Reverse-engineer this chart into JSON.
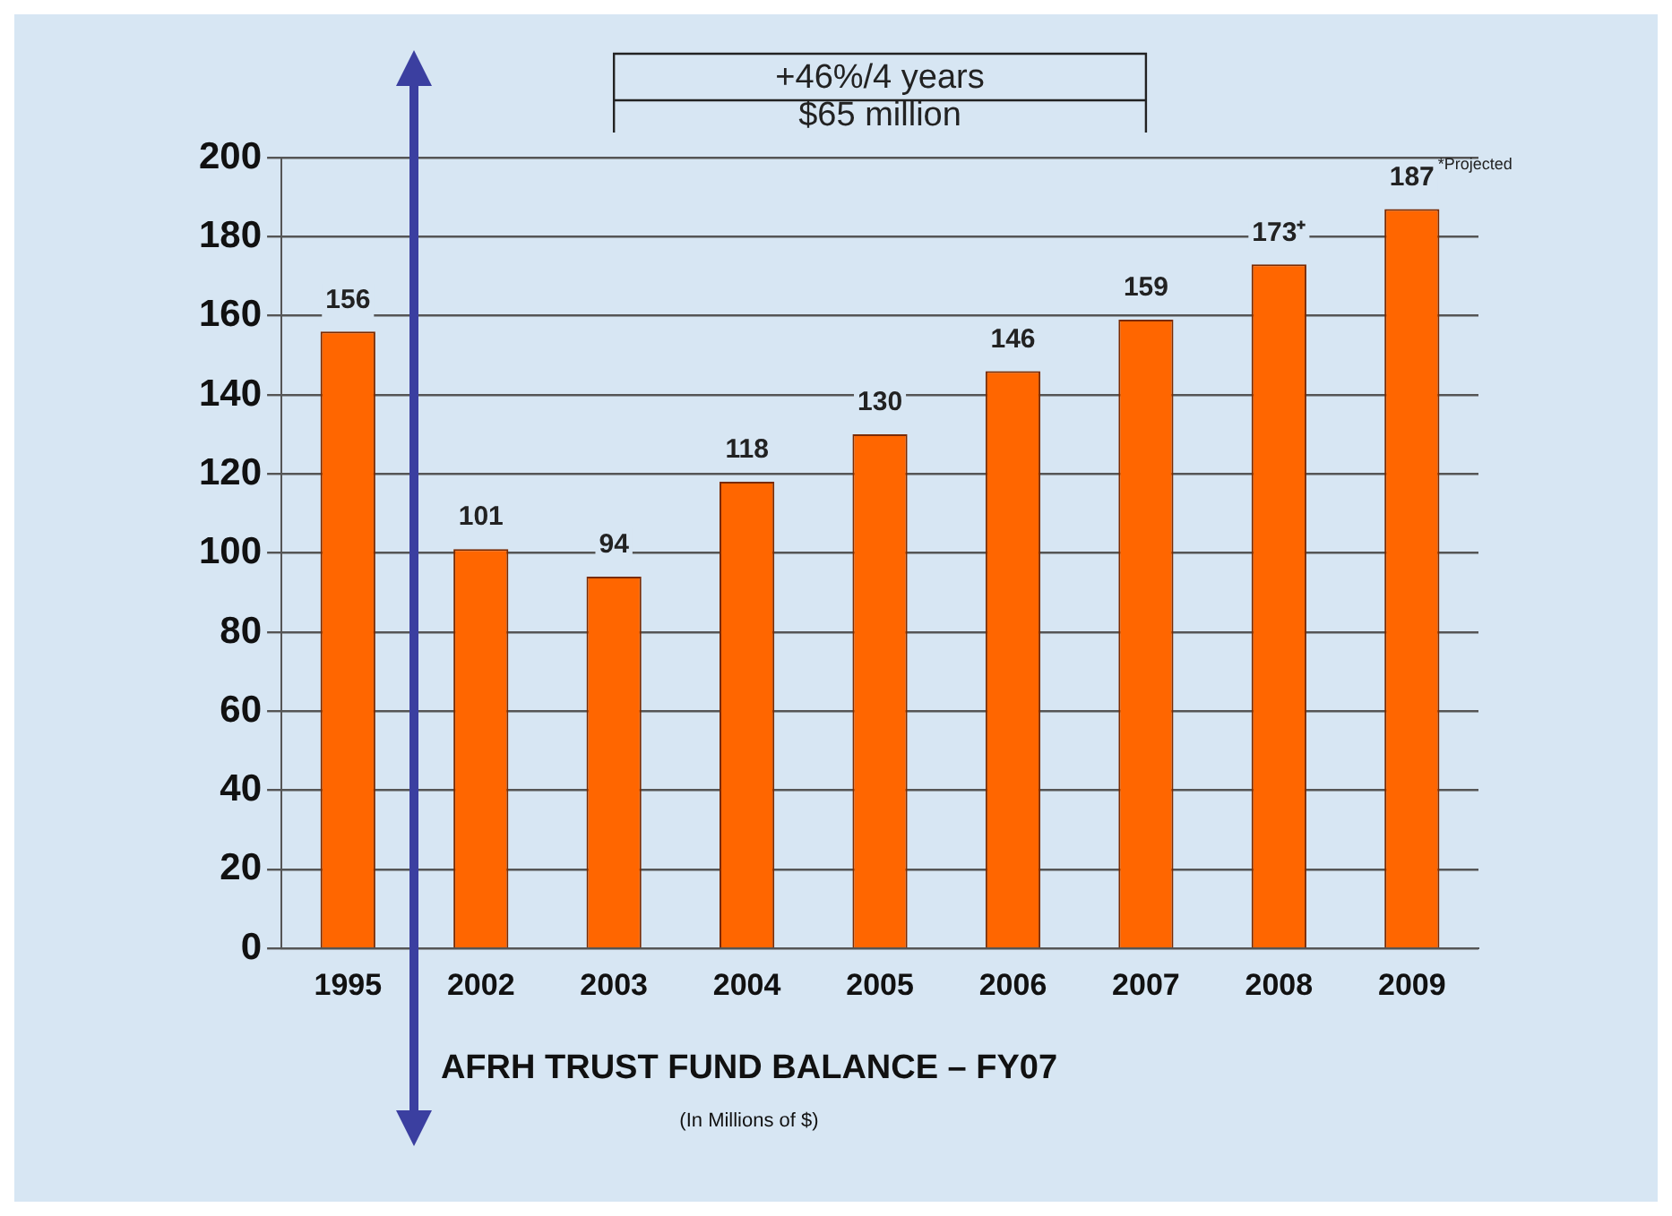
{
  "chart_data": {
    "type": "bar",
    "title": "AFRH TRUST FUND BALANCE – FY07",
    "subtitle": "(In Millions of $)",
    "categories": [
      "1995",
      "2002",
      "2003",
      "2004",
      "2005",
      "2006",
      "2007",
      "2008",
      "2009"
    ],
    "values": [
      156,
      101,
      94,
      118,
      130,
      146,
      159,
      173,
      187
    ],
    "value_labels": [
      "156",
      "101",
      "94",
      "118",
      "130",
      "146",
      "159",
      "173⁺",
      "187"
    ],
    "color": "#ff6600",
    "ylim": [
      0,
      200
    ],
    "yticks": [
      0,
      20,
      40,
      60,
      80,
      100,
      120,
      140,
      160,
      180,
      200
    ],
    "grid": "y",
    "annotations": [
      "+46%/4 years",
      "$65 million",
      "*Projected"
    ]
  }
}
